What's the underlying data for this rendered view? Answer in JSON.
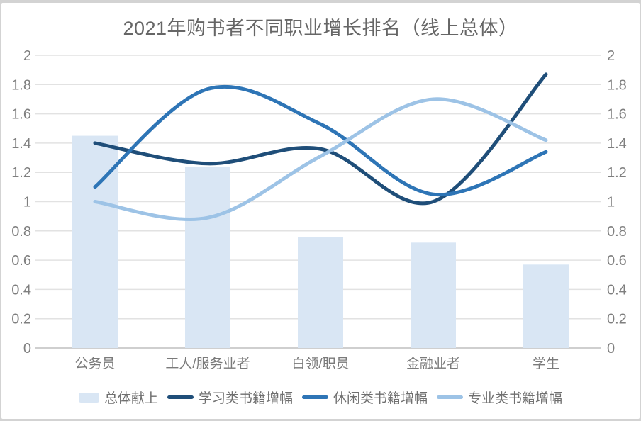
{
  "page": {
    "background": "#d3d3d3",
    "card_background": "#ffffff"
  },
  "chart_data": {
    "type": "combo-bar-line",
    "title": "2021年购书者不同职业增长排名（线上总体）",
    "categories": [
      "公务员",
      "工人/服务业者",
      "白领/职员",
      "金融业者",
      "学生"
    ],
    "series": [
      {
        "name": "总体献上",
        "type": "bar",
        "color": "#d9e6f4",
        "values": [
          1.45,
          1.24,
          0.76,
          0.72,
          0.57
        ]
      },
      {
        "name": "学习类书籍增幅",
        "type": "line",
        "color": "#1f4e79",
        "values": [
          1.4,
          1.26,
          1.36,
          1.0,
          1.87
        ]
      },
      {
        "name": "休闲类书籍增幅",
        "type": "line",
        "color": "#2e75b6",
        "values": [
          1.1,
          1.77,
          1.53,
          1.05,
          1.34
        ]
      },
      {
        "name": "专业类书籍增幅",
        "type": "line",
        "color": "#9dc3e6",
        "values": [
          1.0,
          0.89,
          1.31,
          1.7,
          1.42
        ]
      }
    ],
    "y_axis_left": {
      "min": 0,
      "max": 2,
      "step": 0.2,
      "tick_labels": [
        "0",
        "0.2",
        "0.4",
        "0.6",
        "0.8",
        "1",
        "1.2",
        "1.4",
        "1.6",
        "1.8",
        "2"
      ]
    },
    "y_axis_right": {
      "min": 0,
      "max": 2,
      "step": 0.2,
      "tick_labels": [
        "0",
        "0.2",
        "0.4",
        "0.6",
        "0.8",
        "1",
        "1.2",
        "1.4",
        "1.6",
        "1.8",
        "2"
      ]
    },
    "grid": true,
    "legend_position": "bottom",
    "colors": {
      "gridline": "#e2e2e2",
      "axis_line": "#cfcfcf",
      "tick_text": "#7f7f7f",
      "label_text": "#7a7a7a",
      "title_text": "#666666"
    }
  }
}
